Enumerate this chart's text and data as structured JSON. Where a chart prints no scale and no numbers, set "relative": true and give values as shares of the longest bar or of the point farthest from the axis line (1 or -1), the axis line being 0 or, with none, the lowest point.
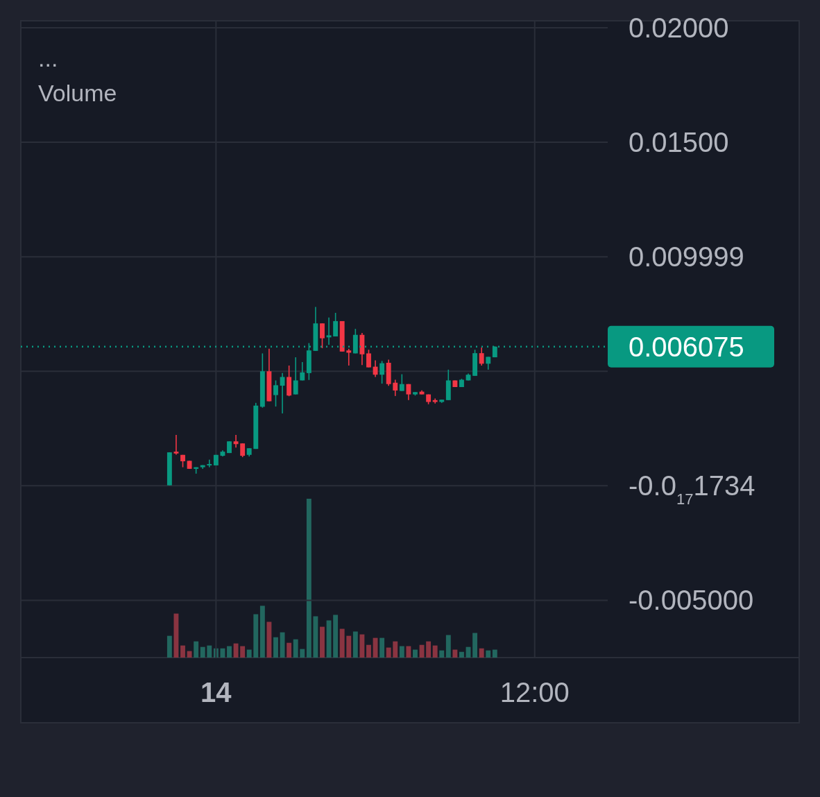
{
  "chart_data": [
    {
      "type": "candlestick",
      "annotations": [
        "..."
      ],
      "categories": [
        null,
        null,
        null,
        null,
        null,
        null,
        null,
        "14",
        null,
        null,
        null,
        null,
        null,
        null,
        null,
        null,
        null,
        null,
        null,
        null,
        null,
        null,
        null,
        null,
        null,
        null,
        null,
        null,
        null,
        null,
        null,
        null,
        null,
        null,
        null,
        null,
        null,
        null,
        null,
        null,
        null,
        null,
        null,
        null,
        null,
        null,
        null,
        null,
        null,
        null,
        null,
        null,
        null,
        null,
        null,
        "12:00"
      ],
      "ohlc": [
        [
          2e-05,
          0.00146,
          2e-05,
          0.00146
        ],
        [
          0.00149,
          0.00222,
          0.00136,
          0.00141
        ],
        [
          0.00135,
          0.00135,
          0.00081,
          0.00107
        ],
        [
          0.00109,
          0.00109,
          0.00074,
          0.00074
        ],
        [
          0.00074,
          0.00081,
          0.00053,
          0.00081
        ],
        [
          0.00081,
          0.0009,
          0.00074,
          0.0009
        ],
        [
          0.00089,
          0.00114,
          0.00081,
          0.00095
        ],
        [
          0.00089,
          0.00135,
          0.00089,
          0.00135
        ],
        [
          0.00131,
          0.00155,
          0.00128,
          0.00149
        ],
        [
          0.00143,
          0.00194,
          0.00143,
          0.00194
        ],
        [
          0.00194,
          0.00222,
          0.00167,
          0.00182
        ],
        [
          0.00185,
          0.00185,
          0.00125,
          0.00131
        ],
        [
          0.00135,
          0.00164,
          0.00128,
          0.00164
        ],
        [
          0.00161,
          0.00362,
          0.00161,
          0.0035
        ],
        [
          0.00345,
          0.00578,
          0.00341,
          0.005
        ],
        [
          0.005,
          0.00598,
          0.00369,
          0.00369
        ],
        [
          0.00396,
          0.0046,
          0.00346,
          0.00439
        ],
        [
          0.00437,
          0.00492,
          0.00316,
          0.00475
        ],
        [
          0.00475,
          0.00525,
          0.00391,
          0.00394
        ],
        [
          0.00399,
          0.00561,
          0.00399,
          0.0046
        ],
        [
          0.0046,
          0.0054,
          0.0046,
          0.00495
        ],
        [
          0.00492,
          0.00623,
          0.00462,
          0.00591
        ],
        [
          0.00589,
          0.00781,
          0.00589,
          0.00709
        ],
        [
          0.00709,
          0.00709,
          0.00601,
          0.00644
        ],
        [
          0.00648,
          0.00735,
          0.00616,
          0.00657
        ],
        [
          0.00652,
          0.00755,
          0.00652,
          0.00719
        ],
        [
          0.00719,
          0.00719,
          0.00586,
          0.00586
        ],
        [
          0.00591,
          0.00598,
          0.00525,
          0.00581
        ],
        [
          0.00578,
          0.00685,
          0.00578,
          0.00659
        ],
        [
          0.00659,
          0.00667,
          0.00527,
          0.00574
        ],
        [
          0.00578,
          0.00594,
          0.00517,
          0.00517
        ],
        [
          0.0052,
          0.00548,
          0.00475,
          0.00485
        ],
        [
          0.00485,
          0.00545,
          0.00446,
          0.00535
        ],
        [
          0.00537,
          0.00551,
          0.00436,
          0.00444
        ],
        [
          0.0045,
          0.00463,
          0.00392,
          0.00416
        ],
        [
          0.00414,
          0.00487,
          0.00414,
          0.00444
        ],
        [
          0.00444,
          0.00444,
          0.00374,
          0.00399
        ],
        [
          0.00399,
          0.00409,
          0.00394,
          0.00409
        ],
        [
          0.00411,
          0.00417,
          0.00399,
          0.00399
        ],
        [
          0.00399,
          0.00399,
          0.00356,
          0.00366
        ],
        [
          0.00374,
          0.00381,
          0.00359,
          0.00366
        ],
        [
          0.00366,
          0.00376,
          0.00362,
          0.00376
        ],
        [
          0.00374,
          0.00507,
          0.00374,
          0.0046
        ],
        [
          0.0046,
          0.0046,
          0.00431,
          0.00431
        ],
        [
          0.00431,
          0.00467,
          0.00431,
          0.00463
        ],
        [
          0.0046,
          0.0049,
          0.0046,
          0.00485
        ],
        [
          0.0048,
          0.00594,
          0.0048,
          0.00579
        ],
        [
          0.00579,
          0.00604,
          0.00525,
          0.00533
        ],
        [
          0.00533,
          0.00563,
          0.00507,
          0.00563
        ],
        [
          0.00561,
          0.00609,
          0.00561,
          0.006075
        ],
        null,
        null,
        null,
        null,
        null,
        null
      ],
      "colors": [
        "#089981",
        "#f23645",
        "#f23645",
        "#f23645",
        "#089981",
        "#089981",
        "#089981",
        "#089981",
        "#089981",
        "#089981",
        "#f23645",
        "#f23645",
        "#089981",
        "#089981",
        "#089981",
        "#f23645",
        "#089981",
        "#089981",
        "#f23645",
        "#089981",
        "#089981",
        "#089981",
        "#089981",
        "#f23645",
        "#089981",
        "#089981",
        "#f23645",
        "#f23645",
        "#089981",
        "#f23645",
        "#f23645",
        "#f23645",
        "#089981",
        "#f23645",
        "#f23645",
        "#089981",
        "#f23645",
        "#089981",
        "#f23645",
        "#f23645",
        "#f23645",
        "#089981",
        "#089981",
        "#f23645",
        "#089981",
        "#089981",
        "#089981",
        "#f23645",
        "#089981",
        "#089981",
        null,
        null,
        null,
        null,
        null,
        null
      ],
      "ylim": [
        -0.0075,
        0.0203
      ],
      "yticks": [
        {
          "value": 0.02,
          "label": "0.02000"
        },
        {
          "value": 0.015,
          "label": "0.01500"
        },
        {
          "value": 0.009999,
          "label": "0.009999"
        },
        {
          "value": 0.004999,
          "label": null
        },
        {
          "value": -1.734e-18,
          "label": "-0.0$_{17}$1734"
        },
        {
          "value": -0.005,
          "label": "-0.005000"
        }
      ],
      "ref_lines": [
        {
          "axis": "y",
          "value": 0.006075,
          "label": "0.006075",
          "color": "#089981",
          "line_style": "dotted"
        }
      ],
      "grid": true
    },
    {
      "type": "bar",
      "title": "Volume",
      "relative": true,
      "categories": [
        null,
        null,
        null,
        null,
        null,
        null,
        null,
        null,
        null,
        null,
        null,
        null,
        null,
        null,
        null,
        null,
        null,
        null,
        null,
        null,
        null,
        null,
        null,
        null,
        null,
        null,
        null,
        null,
        null,
        null,
        null,
        null,
        null,
        null,
        null,
        null,
        null,
        null,
        null,
        null,
        null,
        null,
        null,
        null,
        null,
        null,
        null,
        null,
        null,
        null
      ],
      "values": [
        0.137,
        0.277,
        0.076,
        0.041,
        0.102,
        0.067,
        0.076,
        0.058,
        0.058,
        0.072,
        0.089,
        0.072,
        0.05,
        0.273,
        0.326,
        0.225,
        0.128,
        0.159,
        0.093,
        0.115,
        0.054,
        1,
        0.26,
        0.194,
        0.234,
        0.269,
        0.181,
        0.137,
        0.164,
        0.146,
        0.08,
        0.124,
        0.124,
        0.063,
        0.102,
        0.072,
        0.072,
        0.05,
        0.08,
        0.102,
        0.076,
        0.045,
        0.142,
        0.05,
        0.036,
        0.067,
        0.155,
        0.058,
        0.045,
        0.05
      ],
      "colors": [
        "#22675f",
        "#8a3441",
        "#8a3441",
        "#8a3441",
        "#22675f",
        "#22675f",
        "#22675f",
        "#22675f",
        "#22675f",
        "#22675f",
        "#8a3441",
        "#8a3441",
        "#22675f",
        "#22675f",
        "#22675f",
        "#8a3441",
        "#22675f",
        "#22675f",
        "#8a3441",
        "#22675f",
        "#22675f",
        "#22675f",
        "#22675f",
        "#8a3441",
        "#22675f",
        "#22675f",
        "#8a3441",
        "#8a3441",
        "#22675f",
        "#8a3441",
        "#8a3441",
        "#8a3441",
        "#22675f",
        "#8a3441",
        "#8a3441",
        "#22675f",
        "#8a3441",
        "#22675f",
        "#8a3441",
        "#8a3441",
        "#8a3441",
        "#22675f",
        "#22675f",
        "#8a3441",
        "#22675f",
        "#22675f",
        "#22675f",
        "#8a3441",
        "#22675f",
        "#22675f"
      ]
    }
  ]
}
